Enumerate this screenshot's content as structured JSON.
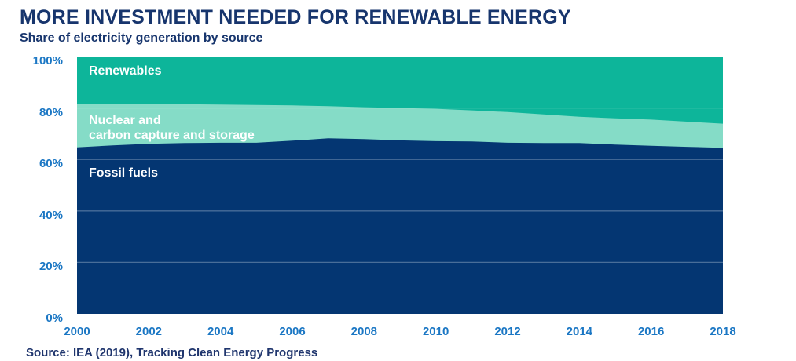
{
  "header": {
    "title": "MORE INVESTMENT NEEDED FOR RENEWABLE ENERGY",
    "subtitle": "Share of electricity generation by source"
  },
  "source_text": "Source: IEA (2019), Tracking Clean Energy Progress",
  "area_labels": {
    "renewables": "Renewables",
    "nuclear_line1": "Nuclear and",
    "nuclear_line2": "carbon capture and storage",
    "fossil": "Fossil fuels"
  },
  "colors": {
    "title_navy": "#17356d",
    "axis_blue": "#1b77c4",
    "fossil_fill": "#043672",
    "nuclear_fill": "#85dcc7",
    "renewables_fill": "#0db59a",
    "gridline": "rgba(255,255,255,0.28)",
    "on_chart_label": "#ffffff"
  },
  "chart_data": {
    "type": "area",
    "stacked": true,
    "title": "MORE INVESTMENT NEEDED FOR RENEWABLE ENERGY",
    "subtitle": "Share of electricity generation by source",
    "unit": "%",
    "ylim": [
      0,
      100
    ],
    "grid": "horizontal, at 20/40/60/80, drawn light over fills",
    "legend_position": "labels drawn inside areas",
    "x": [
      2000,
      2001,
      2002,
      2003,
      2004,
      2005,
      2006,
      2007,
      2008,
      2009,
      2010,
      2011,
      2012,
      2013,
      2014,
      2015,
      2016,
      2017,
      2018
    ],
    "series": [
      {
        "name": "Fossil fuels",
        "color_key": "fossil_fill",
        "values": [
          64.7,
          65.5,
          66.1,
          66.4,
          66.5,
          66.5,
          67.3,
          68.2,
          67.9,
          67.4,
          67.1,
          67.0,
          66.5,
          66.4,
          66.4,
          65.8,
          65.3,
          64.9,
          64.5
        ]
      },
      {
        "name": "Nuclear and carbon capture and storage",
        "color_key": "nuclear_fill",
        "values": [
          16.8,
          16.1,
          15.5,
          15.1,
          14.8,
          14.7,
          13.7,
          12.5,
          12.4,
          12.6,
          12.6,
          12.1,
          11.9,
          11.1,
          10.2,
          10.2,
          10.2,
          9.8,
          9.4
        ]
      },
      {
        "name": "Renewables",
        "color_key": "renewables_fill",
        "values": [
          18.5,
          18.4,
          18.4,
          18.5,
          18.7,
          18.8,
          19.0,
          19.3,
          19.7,
          20.0,
          20.3,
          20.9,
          21.6,
          22.5,
          23.4,
          24.0,
          24.5,
          25.3,
          26.1
        ]
      }
    ],
    "y_ticks": [
      {
        "value": 100,
        "label": "100%"
      },
      {
        "value": 80,
        "label": "80%"
      },
      {
        "value": 60,
        "label": "60%"
      },
      {
        "value": 40,
        "label": "40%"
      },
      {
        "value": 20,
        "label": "20%"
      },
      {
        "value": 0,
        "label": "0%"
      }
    ],
    "x_ticks": [
      {
        "value": 2000,
        "label": "2000"
      },
      {
        "value": 2002,
        "label": "2002"
      },
      {
        "value": 2004,
        "label": "2004"
      },
      {
        "value": 2006,
        "label": "2006"
      },
      {
        "value": 2008,
        "label": "2008"
      },
      {
        "value": 2010,
        "label": "2010"
      },
      {
        "value": 2012,
        "label": "2012"
      },
      {
        "value": 2014,
        "label": "2014"
      },
      {
        "value": 2016,
        "label": "2016"
      },
      {
        "value": 2018,
        "label": "2018"
      }
    ]
  }
}
